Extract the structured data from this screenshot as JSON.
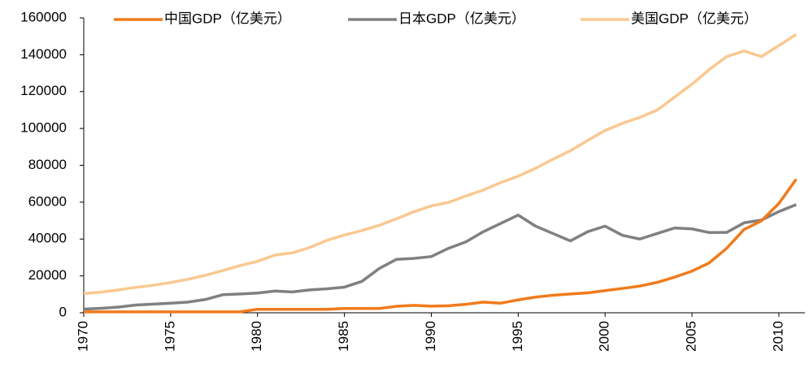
{
  "chart_data": {
    "type": "line",
    "x": [
      1970,
      1971,
      1972,
      1973,
      1974,
      1975,
      1976,
      1977,
      1978,
      1979,
      1980,
      1981,
      1982,
      1983,
      1984,
      1985,
      1986,
      1987,
      1988,
      1989,
      1990,
      1991,
      1992,
      1993,
      1994,
      1995,
      1996,
      1997,
      1998,
      1999,
      2000,
      2001,
      2002,
      2003,
      2004,
      2005,
      2006,
      2007,
      2008,
      2009,
      2010,
      2011
    ],
    "series": [
      {
        "name": "中国GDP（亿美元）",
        "color": "#f07b1c",
        "values": [
          500,
          500,
          500,
          500,
          500,
          500,
          500,
          500,
          500,
          500,
          1900,
          1900,
          1900,
          1900,
          1900,
          2300,
          2300,
          2300,
          3500,
          4000,
          3600,
          3800,
          4600,
          5800,
          5200,
          7000,
          8500,
          9500,
          10200,
          10800,
          12000,
          13200,
          14500,
          16500,
          19300,
          22600,
          27100,
          35000,
          45200,
          49900,
          59300,
          72500
        ]
      },
      {
        "name": "日本GDP（亿美元）",
        "color": "#808080",
        "values": [
          2000,
          2400,
          3100,
          4200,
          4700,
          5200,
          5800,
          7200,
          9800,
          10200,
          10700,
          11800,
          11300,
          12400,
          13000,
          13900,
          17000,
          24000,
          29000,
          29500,
          30500,
          35000,
          38500,
          44000,
          48500,
          53000,
          47000,
          43000,
          39000,
          44000,
          47000,
          42000,
          40000,
          43000,
          46000,
          45500,
          43500,
          43600,
          48800,
          50300,
          54900,
          58700
        ]
      },
      {
        "name": "美国GDP（亿美元）",
        "color": "#fac890",
        "values": [
          10400,
          11200,
          12400,
          13800,
          14900,
          16400,
          18200,
          20300,
          22900,
          25600,
          27900,
          31300,
          32500,
          35400,
          39300,
          42200,
          44600,
          47400,
          51000,
          54800,
          58000,
          59900,
          63400,
          66600,
          70700,
          74100,
          78400,
          83300,
          87900,
          93500,
          98900,
          102800,
          106000,
          110000,
          117000,
          124000,
          132000,
          139000,
          142000,
          139000,
          145000,
          151000
        ]
      }
    ],
    "xlim": [
      1970,
      2011.5
    ],
    "xticks": [
      1970,
      1975,
      1980,
      1985,
      1990,
      1995,
      2000,
      2005,
      2010
    ],
    "ylim": [
      0,
      160000
    ],
    "yticks": [
      0,
      20000,
      40000,
      60000,
      80000,
      100000,
      120000,
      140000,
      160000
    ],
    "legend": "top"
  }
}
